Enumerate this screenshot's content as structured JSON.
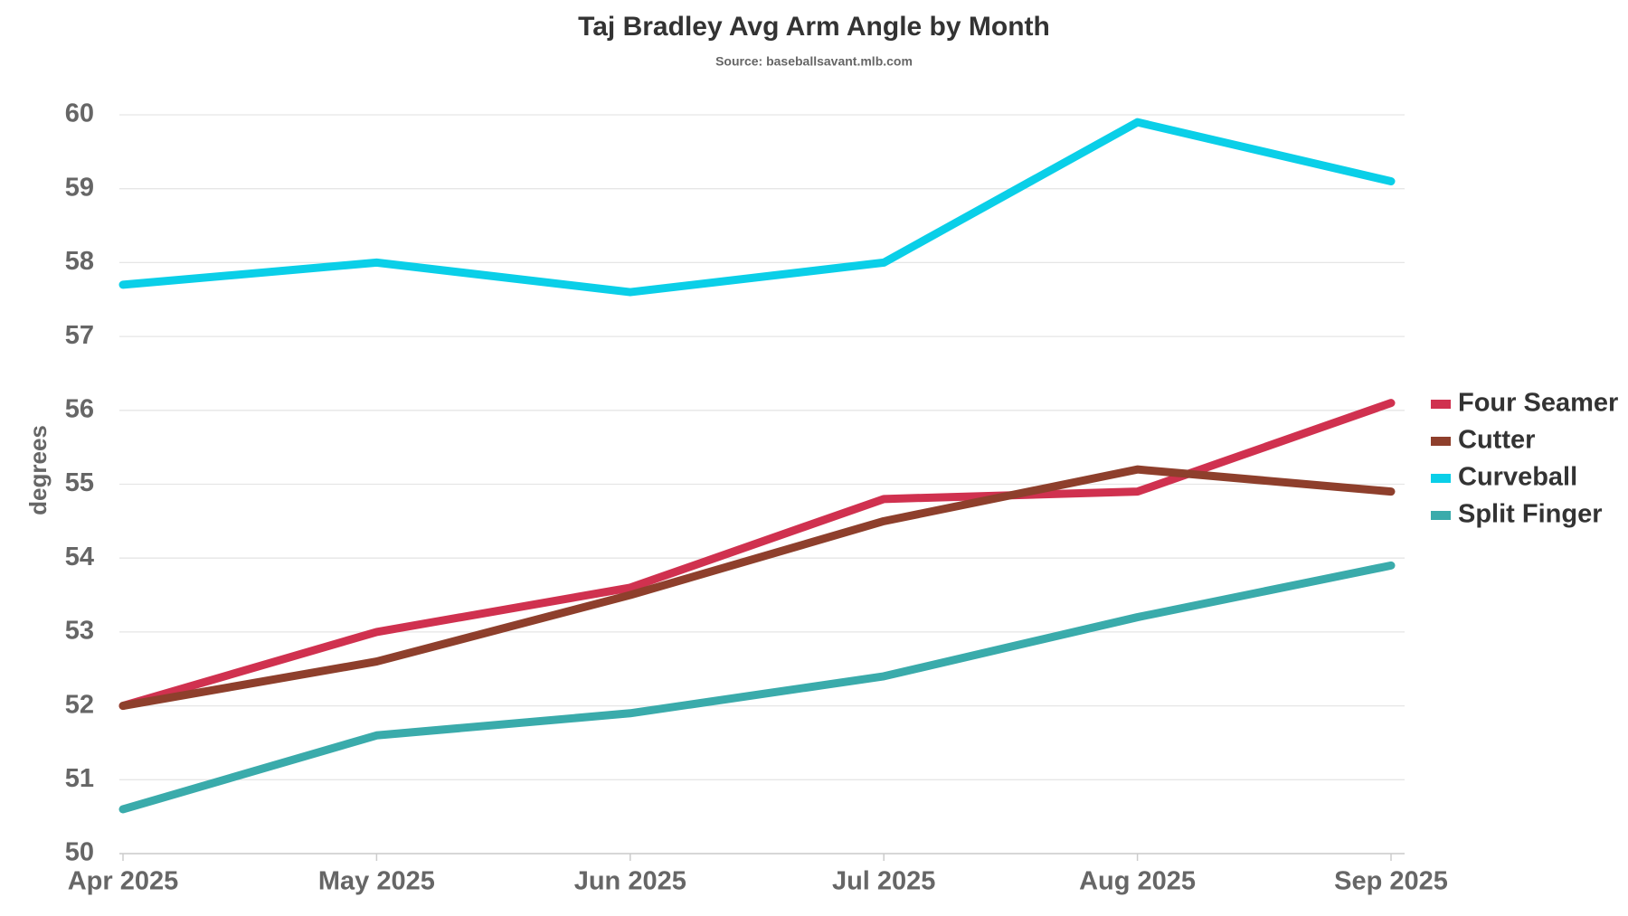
{
  "chart_data": {
    "type": "line",
    "title": "Taj Bradley Avg Arm Angle by Month",
    "subtitle": "Source: baseballsavant.mlb.com",
    "y_label": "degrees",
    "categories": [
      "Apr 2025",
      "May 2025",
      "Jun 2025",
      "Jul 2025",
      "Aug 2025",
      "Sep 2025"
    ],
    "series": [
      {
        "name": "Four Seamer",
        "color": "#d0314f",
        "values": [
          52.0,
          53.0,
          53.6,
          54.8,
          54.9,
          56.1
        ]
      },
      {
        "name": "Cutter",
        "color": "#8e3f2c",
        "values": [
          52.0,
          52.6,
          53.5,
          54.5,
          55.2,
          54.9
        ]
      },
      {
        "name": "Curveball",
        "color": "#0acfe8",
        "values": [
          57.7,
          58.0,
          57.6,
          58.0,
          59.9,
          59.1
        ]
      },
      {
        "name": "Split Finger",
        "color": "#3aabab",
        "values": [
          50.6,
          51.6,
          51.9,
          52.4,
          53.2,
          53.9
        ]
      }
    ],
    "ylim": [
      50,
      60
    ],
    "yticks": [
      50,
      51,
      52,
      53,
      54,
      55,
      56,
      57,
      58,
      59,
      60
    ],
    "grid": true,
    "legend": "right"
  }
}
